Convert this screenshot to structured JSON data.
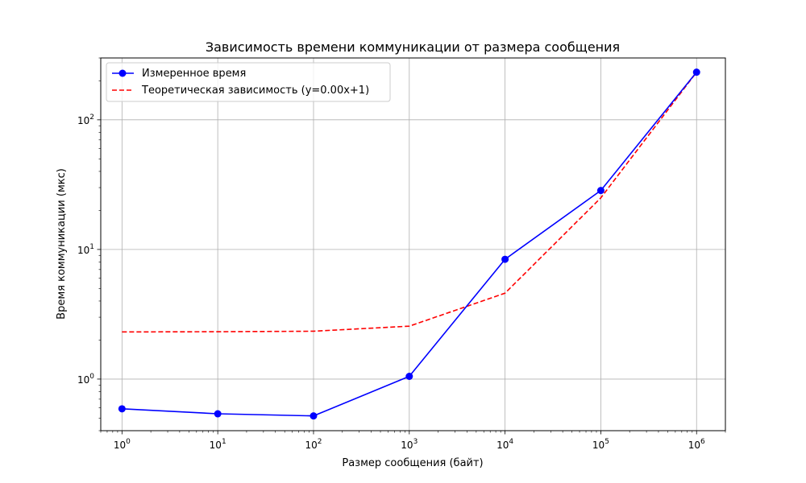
{
  "chart_data": {
    "type": "line",
    "title": "Зависимость времени коммуникации от размера сообщения",
    "xlabel": "Размер сообщения (байт)",
    "ylabel": "Время коммуникации (мкс)",
    "x_scale": "log",
    "y_scale": "log",
    "xlim": [
      0.6,
      2000000
    ],
    "ylim": [
      0.4,
      300
    ],
    "grid": true,
    "legend_position": "top-left",
    "x_ticks": [
      {
        "value": 1,
        "base": "10",
        "exp": "0"
      },
      {
        "value": 10,
        "base": "10",
        "exp": "1"
      },
      {
        "value": 100,
        "base": "10",
        "exp": "2"
      },
      {
        "value": 1000,
        "base": "10",
        "exp": "3"
      },
      {
        "value": 10000,
        "base": "10",
        "exp": "4"
      },
      {
        "value": 100000,
        "base": "10",
        "exp": "5"
      },
      {
        "value": 1000000,
        "base": "10",
        "exp": "6"
      }
    ],
    "y_ticks": [
      {
        "value": 1,
        "base": "10",
        "exp": "0"
      },
      {
        "value": 10,
        "base": "10",
        "exp": "1"
      },
      {
        "value": 100,
        "base": "10",
        "exp": "2"
      }
    ],
    "series": [
      {
        "name": "Измеренное время",
        "color": "#0000ff",
        "style": "solid",
        "marker": "circle",
        "x": [
          1,
          10,
          100,
          1000,
          10000,
          100000,
          1000000
        ],
        "y": [
          0.59,
          0.54,
          0.52,
          1.05,
          8.4,
          28.5,
          233
        ]
      },
      {
        "name": "Теоретическая зависимость (y=0.00x+1)",
        "color": "#ff0000",
        "style": "dashed",
        "marker": "none",
        "x": [
          1,
          10,
          100,
          1000,
          10000,
          100000,
          1000000
        ],
        "y": [
          2.31,
          2.32,
          2.34,
          2.56,
          4.6,
          25,
          233
        ]
      }
    ]
  }
}
